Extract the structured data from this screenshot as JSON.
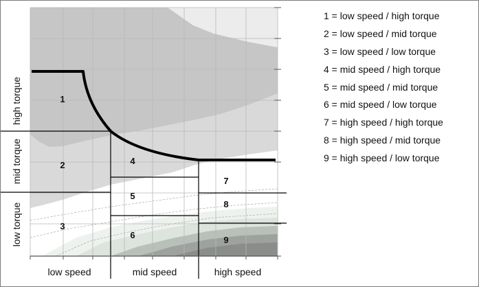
{
  "zones": [
    {
      "number": "1"
    },
    {
      "number": "2"
    },
    {
      "number": "3"
    },
    {
      "number": "4"
    },
    {
      "number": "5"
    },
    {
      "number": "6"
    },
    {
      "number": "7"
    },
    {
      "number": "8"
    },
    {
      "number": "9"
    }
  ],
  "axis": {
    "x_labels": [
      "low speed",
      "mid speed",
      "high speed"
    ],
    "y_labels": [
      "low torque",
      "mid torque",
      "high torque"
    ]
  },
  "legend": [
    "1 = low speed / high torque",
    "2 = low speed / mid torque",
    "3 = low speed / low torque",
    "4 = mid speed / high torque",
    "5 = mid speed / mid torque",
    "6 = mid speed / low torque",
    "7 = high speed / high torque",
    "8 = high speed / mid torque",
    "9 = high speed / low torque"
  ],
  "colors": {
    "border": "#7a7a7a",
    "curve": "#000000",
    "region_dark": "#c6c6c6",
    "region_mid": "#d9d9d9",
    "region_light": "#e4e4e4",
    "region_white": "#ffffff",
    "gridline": "#b8b8b8"
  }
}
